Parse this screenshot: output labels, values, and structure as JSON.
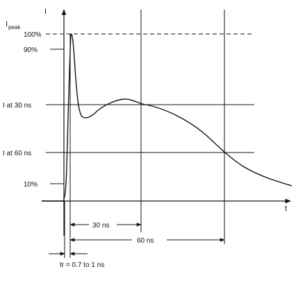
{
  "diagram": {
    "y_axis_label": "I",
    "peak_label_main": "I",
    "peak_label_sub": "peak",
    "x_axis_label": "t",
    "levels": {
      "p100": "100%",
      "p90": "90%",
      "i30": "I at 30 ns",
      "i60": "I at 60 ns",
      "p10": "10%"
    },
    "dimensions": {
      "t30": "30 ns",
      "t60": "60 ns",
      "rise": "tr = 0.7 to 1 ns"
    }
  }
}
